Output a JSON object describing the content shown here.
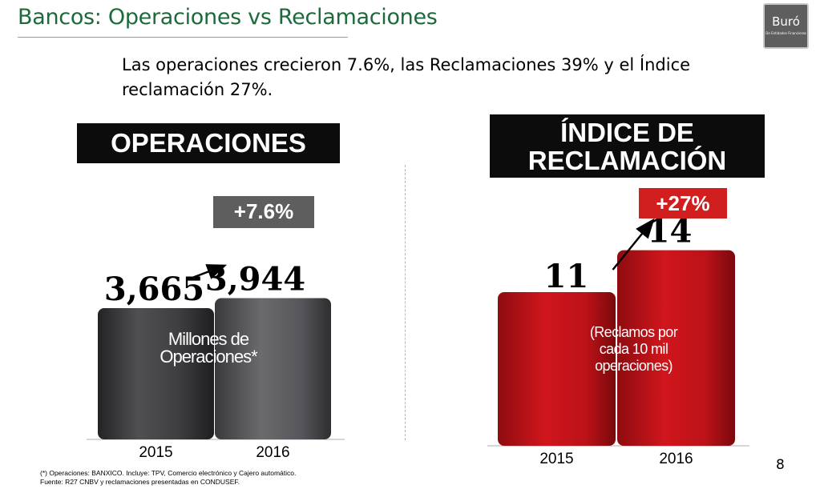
{
  "header": {
    "title": "Bancos: Operaciones vs Reclamaciones",
    "logo_text": "Buró",
    "logo_subtext": "De Entidades Financieras"
  },
  "summary": "Las operaciones crecieron 7.6%, las Reclamaciones 39% y el Índice reclamación 27%.",
  "colors": {
    "title_green": "#1c6a3a",
    "operations_bar": "#4a4a4d",
    "index_bar": "#c8161d",
    "operations_badge": "#5e5e5e",
    "index_badge": "#d11f1f"
  },
  "panels": {
    "operations": {
      "heading": "OPERACIONES",
      "change": "+7.6%",
      "caption": "Millones de Operaciones*"
    },
    "index": {
      "heading": "ÍNDICE DE RECLAMACIÓN",
      "change": "+27%",
      "caption": "(Reclamos por cada 10 mil operaciones)"
    }
  },
  "chart_data": [
    {
      "type": "bar",
      "title": "OPERACIONES",
      "categories": [
        "2015",
        "2016"
      ],
      "values": [
        3665,
        3944
      ],
      "value_labels": [
        "3,665",
        "3,944"
      ],
      "annotation": "+7.6%",
      "unit_note": "Millones de Operaciones*"
    },
    {
      "type": "bar",
      "title": "ÍNDICE DE RECLAMACIÓN",
      "categories": [
        "2015",
        "2016"
      ],
      "values": [
        11,
        14
      ],
      "value_labels": [
        "11",
        "14"
      ],
      "annotation": "+27%",
      "unit_note": "(Reclamos por cada 10 mil operaciones)"
    }
  ],
  "footnotes": [
    "(*) Operaciones: BANXICO. Incluye: TPV, Comercio electrónico y Cajero automático.",
    "Fuente: R27 CNBV y reclamaciones presentadas en CONDUSEF."
  ],
  "page_number": "8"
}
